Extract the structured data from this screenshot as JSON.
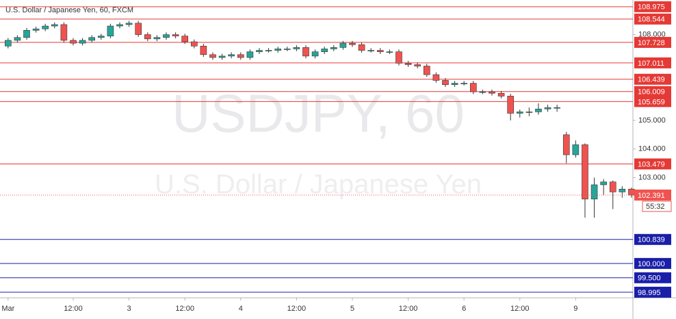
{
  "chart_data": {
    "type": "candlestick",
    "title": "U.S. Dollar / Japanese Yen, 60, FXCM",
    "watermark": "USDJPY, 60",
    "watermark_subtitle": "U.S. Dollar / Japanese Yen",
    "up_color": "#26a69a",
    "down_color": "#ef5350",
    "xlim": [
      -0.5,
      67.15
    ],
    "ylim": [
      98.8,
      109.21
    ],
    "xticks": [
      {
        "value": 0,
        "label": "Mar"
      },
      {
        "value": 7,
        "label": "12:00"
      },
      {
        "value": 13,
        "label": "3"
      },
      {
        "value": 19,
        "label": "12:00"
      },
      {
        "value": 25,
        "label": "4"
      },
      {
        "value": 31,
        "label": "12:00"
      },
      {
        "value": 37,
        "label": "5"
      },
      {
        "value": 43,
        "label": "12:00"
      },
      {
        "value": 49,
        "label": "6"
      },
      {
        "value": 55,
        "label": "12:00"
      },
      {
        "value": 61,
        "label": "9"
      }
    ],
    "yticks": [
      {
        "value": 108,
        "label": "108.000"
      },
      {
        "value": 105,
        "label": "105.000"
      },
      {
        "value": 104,
        "label": "104.000"
      },
      {
        "value": 103,
        "label": "103.000"
      }
    ],
    "open": [
      107.6,
      107.8,
      107.9,
      108.15,
      108.2,
      108.3,
      108.35,
      107.8,
      107.7,
      107.8,
      107.9,
      107.95,
      108.3,
      108.35,
      108.4,
      108.0,
      107.85,
      107.9,
      108.0,
      107.95,
      107.75,
      107.6,
      107.3,
      107.2,
      107.25,
      107.3,
      107.2,
      107.4,
      107.45,
      107.45,
      107.5,
      107.5,
      107.55,
      107.25,
      107.4,
      107.5,
      107.55,
      107.7,
      107.65,
      107.45,
      107.45,
      107.4,
      107.4,
      107.0,
      106.95,
      106.9,
      106.6,
      106.4,
      106.25,
      106.3,
      106.3,
      106.0,
      106.0,
      105.95,
      105.85,
      105.25,
      105.3,
      105.3,
      105.4,
      105.45,
      104.5,
      103.8,
      104.15,
      102.25,
      102.75,
      102.85,
      102.5,
      102.6
    ],
    "high": [
      107.88,
      107.98,
      108.23,
      108.28,
      108.38,
      108.43,
      108.43,
      107.88,
      107.88,
      107.98,
      108.03,
      108.38,
      108.43,
      108.48,
      108.48,
      108.08,
      107.98,
      108.08,
      108.08,
      108.03,
      107.83,
      107.68,
      107.38,
      107.33,
      107.38,
      107.38,
      107.48,
      107.53,
      107.53,
      107.58,
      107.58,
      107.63,
      107.63,
      107.48,
      107.58,
      107.63,
      107.78,
      107.78,
      107.73,
      107.53,
      107.53,
      107.48,
      107.48,
      107.08,
      107.03,
      106.98,
      106.68,
      106.48,
      106.38,
      106.38,
      106.38,
      106.08,
      106.08,
      106.03,
      105.93,
      105.38,
      105.45,
      105.6,
      105.55,
      105.55,
      104.6,
      104.3,
      104.2,
      103.0,
      102.95,
      102.9,
      102.7,
      102.65
    ],
    "low": [
      107.52,
      107.72,
      107.82,
      108.07,
      108.12,
      108.22,
      107.72,
      107.62,
      107.62,
      107.72,
      107.82,
      107.87,
      108.22,
      108.27,
      107.92,
      107.77,
      107.77,
      107.82,
      107.87,
      107.67,
      107.52,
      107.22,
      107.12,
      107.12,
      107.17,
      107.12,
      107.12,
      107.32,
      107.37,
      107.37,
      107.42,
      107.42,
      107.17,
      107.17,
      107.32,
      107.42,
      107.47,
      107.57,
      107.37,
      107.37,
      107.32,
      107.32,
      106.92,
      106.87,
      106.82,
      106.52,
      106.32,
      106.17,
      106.17,
      106.22,
      105.92,
      105.92,
      105.87,
      105.77,
      105.0,
      105.1,
      105.15,
      105.2,
      105.3,
      105.3,
      103.5,
      103.7,
      101.6,
      101.6,
      102.4,
      101.9,
      102.3,
      102.3
    ],
    "close": [
      107.8,
      107.9,
      108.15,
      108.2,
      108.3,
      108.35,
      107.8,
      107.7,
      107.8,
      107.9,
      107.95,
      108.3,
      108.35,
      108.4,
      108.0,
      107.85,
      107.9,
      108.0,
      107.95,
      107.75,
      107.6,
      107.3,
      107.2,
      107.25,
      107.3,
      107.2,
      107.4,
      107.45,
      107.45,
      107.5,
      107.5,
      107.55,
      107.25,
      107.4,
      107.5,
      107.55,
      107.7,
      107.65,
      107.45,
      107.45,
      107.4,
      107.4,
      107.0,
      106.95,
      106.9,
      106.6,
      106.4,
      106.25,
      106.3,
      106.3,
      106.0,
      106.0,
      105.95,
      105.85,
      105.25,
      105.3,
      105.3,
      105.4,
      105.45,
      105.45,
      103.8,
      104.15,
      102.25,
      102.75,
      102.85,
      102.5,
      102.6,
      102.391
    ],
    "levels": [
      {
        "value": 108.975,
        "label": "108.975",
        "color": "#e53935"
      },
      {
        "value": 108.544,
        "label": "108.544",
        "color": "#e53935"
      },
      {
        "value": 107.728,
        "label": "107.728",
        "color": "#e53935"
      },
      {
        "value": 107.011,
        "label": "107.011",
        "color": "#e53935"
      },
      {
        "value": 106.439,
        "label": "106.439",
        "color": "#e53935"
      },
      {
        "value": 106.009,
        "label": "106.009",
        "color": "#e53935"
      },
      {
        "value": 105.659,
        "label": "105.659",
        "color": "#e53935"
      },
      {
        "value": 103.479,
        "label": "103.479",
        "color": "#e53935"
      },
      {
        "value": 100.839,
        "label": "100.839",
        "color": "#1a1fa8"
      },
      {
        "value": 100,
        "label": "100.000",
        "color": "#1a1fa8"
      },
      {
        "value": 99.5,
        "label": "99.500",
        "color": "#1a1fa8"
      },
      {
        "value": 98.995,
        "label": "98.995",
        "color": "#1a1fa8"
      }
    ],
    "last_price": {
      "value": 102.391,
      "label": "102.391",
      "color": "#ef5350"
    },
    "countdown": "55:32"
  }
}
